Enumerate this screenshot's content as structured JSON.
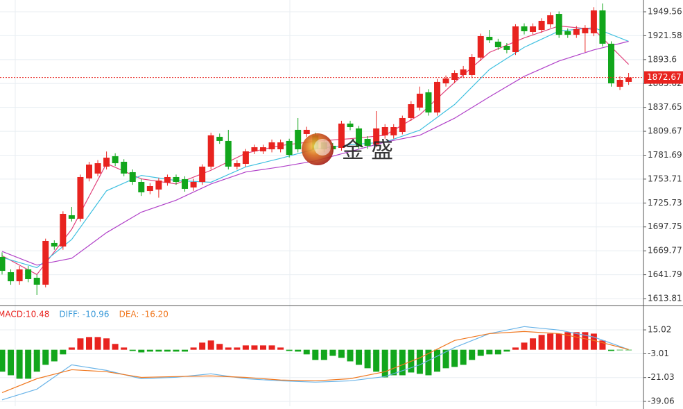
{
  "chart_data": [
    {
      "type": "candlestick",
      "ylim": [
        1605.68,
        1963.38
      ],
      "yticks": [
        1949.56,
        1921.58,
        1893.6,
        1865.62,
        1837.65,
        1809.67,
        1781.69,
        1753.71,
        1725.73,
        1697.75,
        1669.77,
        1641.79,
        1613.81
      ],
      "grid": true,
      "up_color": "#e8231f",
      "down_color": "#12a61c",
      "open": [
        1662.6,
        1644.7,
        1634.1,
        1648.0,
        1638.2,
        1630.1,
        1678.9,
        1674.8,
        1711.4,
        1707.3,
        1754.5,
        1760.2,
        1768.3,
        1780.5,
        1774.0,
        1761.8,
        1750.4,
        1739.8,
        1741.5,
        1749.6,
        1756.1,
        1753.6,
        1743.9,
        1750.4,
        1768.3,
        1803.2,
        1798.4,
        1768.3,
        1771.5,
        1786.2,
        1786.2,
        1788.6,
        1788.6,
        1798.4,
        1811.4,
        1806.5,
        1804.9,
        1796.7,
        1792.7,
        1790.2,
        1818.7,
        1813.0,
        1800.8,
        1794.3,
        1804.9,
        1804.9,
        1808.9,
        1825.2,
        1837.4,
        1855.3,
        1831.7,
        1865.8,
        1869.9,
        1875.6,
        1875.6,
        1895.9,
        1920.3,
        1914.6,
        1909.7,
        1902.4,
        1932.5,
        1926.0,
        1928.4,
        1934.9,
        1947.1,
        1926.8,
        1922.7,
        1924.4,
        1924.4,
        1951.2,
        1912.2,
        1861.8,
        1867.5
      ],
      "high": [
        1668,
        1648,
        1652,
        1652,
        1642,
        1684,
        1682,
        1716,
        1721.1,
        1759,
        1774,
        1776,
        1786,
        1784,
        1777,
        1765,
        1754,
        1749,
        1755,
        1759,
        1759,
        1757,
        1754,
        1771,
        1808,
        1807,
        1811.4,
        1776,
        1789,
        1794,
        1794,
        1800,
        1800,
        1801,
        1825.2,
        1815,
        1808,
        1800,
        1796,
        1822,
        1822,
        1816,
        1804,
        1833.3,
        1818,
        1818,
        1828,
        1845,
        1862,
        1859,
        1871,
        1875,
        1881,
        1886.2,
        1900,
        1924,
        1928.4,
        1918,
        1913,
        1935,
        1936,
        1936,
        1942,
        1949,
        1950,
        1930,
        1933,
        1934,
        1955,
        1959.3,
        1915,
        1874,
        1878
      ],
      "low": [
        1642,
        1630,
        1630,
        1633,
        1617.9,
        1627,
        1671,
        1671,
        1704,
        1704,
        1751,
        1757,
        1765,
        1769,
        1757,
        1747,
        1734,
        1736,
        1732,
        1746,
        1747,
        1739,
        1740,
        1747,
        1765,
        1795,
        1765,
        1765,
        1768,
        1783,
        1783,
        1785,
        1785,
        1779,
        1785,
        1803,
        1785,
        1785,
        1785,
        1787,
        1811,
        1789,
        1789,
        1791,
        1801,
        1801,
        1806,
        1822,
        1834,
        1828,
        1828,
        1862,
        1866,
        1872,
        1872,
        1892,
        1913,
        1905,
        1901,
        1899,
        1923,
        1923,
        1925,
        1931,
        1919,
        1919,
        1919,
        1902.4,
        1921,
        1909,
        1862,
        1858,
        1864
      ],
      "close": [
        1646.3,
        1634.1,
        1648.0,
        1636.6,
        1630.1,
        1681.3,
        1674.8,
        1713.0,
        1707.3,
        1756.1,
        1770.7,
        1772.3,
        1778.8,
        1772.3,
        1760.2,
        1750.4,
        1738.2,
        1745.5,
        1752.0,
        1756.1,
        1750.4,
        1742.3,
        1750.4,
        1768.3,
        1804.9,
        1798.4,
        1768.3,
        1772.3,
        1786.2,
        1791.0,
        1791.0,
        1796.7,
        1796.7,
        1782.1,
        1788.6,
        1811.4,
        1788.6,
        1788.6,
        1788.6,
        1818.7,
        1814.6,
        1792.7,
        1792.7,
        1813.0,
        1814.6,
        1814.6,
        1825.2,
        1841.4,
        1853.7,
        1831.7,
        1867.5,
        1871.5,
        1878.0,
        1882.1,
        1896.7,
        1921.1,
        1916.2,
        1908.1,
        1904.9,
        1932.5,
        1926.8,
        1932.5,
        1939.0,
        1945.5,
        1922.7,
        1922.7,
        1929.3,
        1930.9,
        1951.2,
        1912.2,
        1865.8,
        1869.9,
        1872.67
      ],
      "series": [
        {
          "color": "#e0407a",
          "x": [
            0,
            4,
            8,
            12,
            16,
            20,
            24,
            28,
            32,
            36,
            40,
            44,
            48,
            52,
            56,
            60,
            64,
            68,
            72
          ],
          "values": [
            1664,
            1642,
            1695,
            1772,
            1754,
            1748,
            1764,
            1784,
            1793,
            1798,
            1801,
            1805,
            1829,
            1867,
            1902,
            1919,
            1933,
            1929,
            1888
          ]
        },
        {
          "color": "#3fc0e0",
          "x": [
            0,
            4,
            8,
            12,
            16,
            20,
            24,
            28,
            32,
            36,
            40,
            44,
            48,
            52,
            56,
            60,
            64,
            68,
            72
          ],
          "values": [
            1662,
            1650,
            1683,
            1740,
            1758,
            1752,
            1750,
            1768,
            1778,
            1789,
            1794,
            1797,
            1811,
            1841,
            1882,
            1908,
            1927,
            1931,
            1915
          ]
        },
        {
          "color": "#b040c8",
          "x": [
            0,
            4,
            8,
            12,
            16,
            20,
            24,
            28,
            32,
            36,
            40,
            44,
            48,
            52,
            56,
            60,
            64,
            68,
            72
          ],
          "values": [
            1669,
            1653,
            1661,
            1691,
            1715,
            1729,
            1748,
            1762,
            1768,
            1775,
            1786,
            1797,
            1805,
            1825,
            1850,
            1874,
            1892,
            1905,
            1915
          ]
        }
      ],
      "last_price": 1872.67,
      "watermark": "金 盛"
    },
    {
      "type": "macd",
      "ylim": [
        -42.7,
        32.9
      ],
      "yticks": [
        15.02,
        -3.01,
        -21.03,
        -39.06
      ],
      "indicator_labels": [
        {
          "text": "MACD:10.48",
          "color": "#e8231f"
        },
        {
          "text": "DIFF: -10.96",
          "color": "#3a9ad9"
        },
        {
          "text": "DEA: -16.20",
          "color": "#f07820"
        }
      ],
      "up_color": "#e8231f",
      "down_color": "#12a61c",
      "values": [
        -16.6,
        -19.3,
        -21.9,
        -21.9,
        -16.6,
        -11.4,
        -8.8,
        -3.5,
        1.7,
        8.6,
        9.6,
        9.6,
        8.6,
        4.4,
        1.7,
        -0.9,
        -2.0,
        -1.4,
        -1.4,
        -1.4,
        -1.4,
        -1.4,
        1.7,
        5.4,
        7.0,
        4.4,
        1.7,
        1.7,
        3.3,
        3.3,
        3.3,
        3.3,
        1.7,
        -0.9,
        -1.4,
        -3.5,
        -7.7,
        -7.7,
        -4.6,
        -6.1,
        -8.8,
        -11.4,
        -14.0,
        -16.6,
        -20.9,
        -19.3,
        -19.3,
        -17.2,
        -18.2,
        -19.3,
        -16.6,
        -14.0,
        -13.0,
        -11.4,
        -7.7,
        -4.6,
        -3.5,
        -3.5,
        -1.4,
        1.7,
        5.4,
        8.6,
        11.2,
        12.2,
        12.2,
        13.3,
        13.3,
        13.3,
        12.2,
        7.0,
        -0.9,
        -0.4,
        -0.4
      ],
      "series": [
        {
          "color": "#6ab4e8",
          "x": [
            0,
            4,
            8,
            12,
            16,
            20,
            24,
            28,
            32,
            36,
            40,
            44,
            48,
            52,
            56,
            60,
            64,
            68,
            72
          ],
          "values": [
            -37.9,
            -29.8,
            -11.4,
            -15.6,
            -21.9,
            -20.8,
            -18.2,
            -21.9,
            -23.5,
            -24.5,
            -23.5,
            -20.3,
            -11.4,
            1.7,
            12.2,
            17.5,
            14.9,
            9.6,
            0.2
          ]
        },
        {
          "color": "#f07820",
          "x": [
            0,
            4,
            8,
            12,
            16,
            20,
            24,
            28,
            32,
            36,
            40,
            44,
            48,
            52,
            56,
            60,
            64,
            68,
            72
          ],
          "values": [
            -32.4,
            -21.9,
            -15.1,
            -16.6,
            -20.9,
            -20.3,
            -19.8,
            -20.9,
            -22.9,
            -23.5,
            -21.9,
            -16.6,
            -6.1,
            7.0,
            12.2,
            13.8,
            12.2,
            7.0,
            0.2
          ]
        }
      ]
    }
  ]
}
